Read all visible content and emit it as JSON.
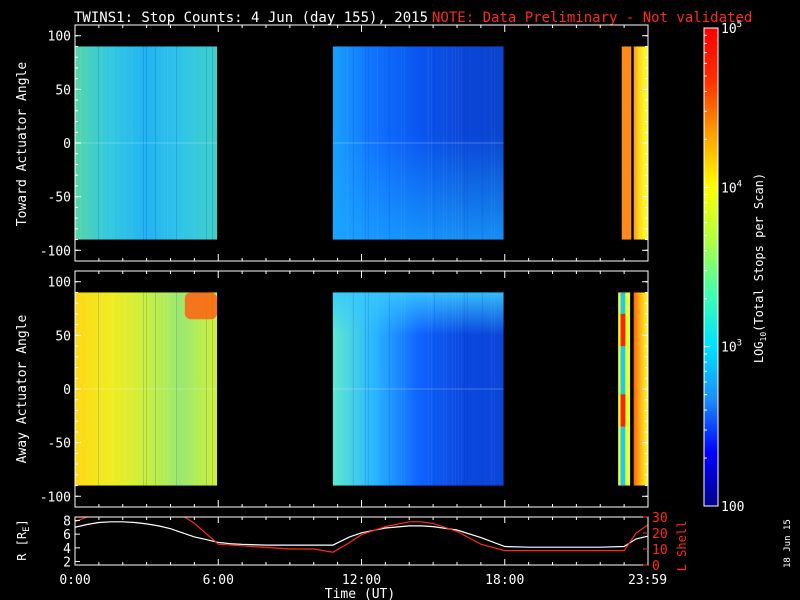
{
  "title": {
    "main": "TWINS1: Stop Counts:  4 Jun (day 155), 2015",
    "note": "NOTE: Data Preliminary - Not validated"
  },
  "date_stamp": "18 Jun 15",
  "colors": {
    "background": "#000000",
    "axis": "#ffffff",
    "note": "#ff2a1a",
    "r_line": "#ffffff",
    "lshell_line": "#ff2a1a"
  },
  "chart_data": [
    {
      "type": "heatmap",
      "panel": "top",
      "ylabel": "Toward Actuator Angle",
      "ylim": [
        -110,
        110
      ],
      "yticks": [
        100,
        50,
        0,
        -50,
        -100
      ],
      "xlim": [
        0,
        24
      ],
      "data_angle_range": [
        -90,
        90
      ],
      "time_blocks": [
        {
          "start": 0.0,
          "end": 5.95,
          "color_stops": [
            "#56d6a8",
            "#32c8e0",
            "#22b4f0",
            "#30c4e8",
            "#40d0c8"
          ],
          "mode": "horizontal",
          "striped": true
        },
        {
          "start": 10.8,
          "end": 17.95,
          "color_stops": [
            "#1aa0ff",
            "#1070ff",
            "#0a56f0",
            "#0a46d8",
            "#0a44d0"
          ],
          "mode": "horizontal",
          "striped": true,
          "lower_fade_color": "#1aa6ff"
        },
        {
          "start": 22.9,
          "end": 23.3,
          "color_stops": [
            "#ff8a1a",
            "#ff8a1a"
          ],
          "mode": "solid"
        },
        {
          "start": 23.4,
          "end": 23.99,
          "color_stops": [
            "#ff9a10",
            "#ffd020",
            "#fff020",
            "#e8ff30"
          ],
          "mode": "horizontal"
        }
      ]
    },
    {
      "type": "heatmap",
      "panel": "middle",
      "ylabel": "Away Actuator Angle",
      "ylim": [
        -110,
        110
      ],
      "yticks": [
        100,
        50,
        0,
        -50,
        -100
      ],
      "xlim": [
        0,
        24
      ],
      "data_angle_range": [
        -90,
        90
      ],
      "time_blocks": [
        {
          "start": 0.0,
          "end": 5.95,
          "color_stops": [
            "#ffd818",
            "#f0ec20",
            "#c8f040",
            "#9ae870",
            "#d0f038"
          ],
          "mode": "horizontal",
          "striped": true,
          "hot_spot": {
            "t0": 4.6,
            "t1": 5.95,
            "a0": 65,
            "a1": 90,
            "color": "#ff6010"
          }
        },
        {
          "start": 10.8,
          "end": 17.95,
          "color_stops": [
            "#60e8d0",
            "#28b4ff",
            "#1064ff",
            "#0a48e0",
            "#0a46d8"
          ],
          "mode": "horizontal",
          "striped": true,
          "upper_band_color": "#38c8ff"
        },
        {
          "start": 22.75,
          "end": 23.25,
          "color_stops": [
            "#e8ff30",
            "#e8ff30"
          ],
          "mode": "solid",
          "inner_strip": {
            "t0": 22.85,
            "t1": 23.05,
            "color": "#20c8f0",
            "red_color": "#ff2010"
          }
        },
        {
          "start": 23.4,
          "end": 23.99,
          "color_stops": [
            "#ff6010",
            "#ffa010",
            "#ffd020",
            "#f0ff30"
          ],
          "mode": "horizontal"
        }
      ]
    },
    {
      "type": "line",
      "panel": "bottom",
      "xlabel": "Time (UT)",
      "xlim": [
        0,
        24
      ],
      "xticks": [
        {
          "value": 0,
          "label": "0:00"
        },
        {
          "value": 6,
          "label": "6:00"
        },
        {
          "value": 12,
          "label": "12:00"
        },
        {
          "value": 18,
          "label": "18:00"
        },
        {
          "value": 23.98,
          "label": "23:59"
        }
      ],
      "ylabel_left": "R [R",
      "ylabel_left_sub": "E",
      "ylabel_left_end": "]",
      "ylim_left": [
        1.5,
        8.5
      ],
      "yticks_left": [
        2,
        4,
        6,
        8
      ],
      "ylabel_right": "L Shell",
      "ylim_right": [
        0,
        30
      ],
      "yticks_right": [
        0,
        10,
        20,
        30
      ],
      "series": [
        {
          "axis": "left",
          "x": [
            0,
            0.5,
            1,
            1.5,
            2,
            2.5,
            3,
            3.5,
            4,
            4.5,
            5,
            5.5,
            6,
            6.5,
            7,
            8,
            9,
            10,
            10.8,
            11.5,
            12,
            13,
            14,
            14.5,
            15,
            16,
            17,
            18,
            19,
            20,
            21,
            22,
            23,
            23.5,
            23.99
          ],
          "values": [
            7.0,
            7.4,
            7.7,
            7.8,
            7.8,
            7.7,
            7.5,
            7.2,
            6.8,
            6.2,
            5.6,
            5.2,
            4.8,
            4.6,
            4.5,
            4.4,
            4.4,
            4.4,
            4.4,
            5.6,
            6.2,
            6.9,
            7.2,
            7.2,
            7.1,
            6.6,
            5.5,
            4.2,
            4.1,
            4.1,
            4.1,
            4.1,
            4.2,
            5.3,
            5.7
          ]
        },
        {
          "axis": "right",
          "x": [
            0,
            0.5,
            1,
            1.4,
            4.5,
            5.0,
            6,
            7,
            8,
            9,
            10,
            10.8,
            11.5,
            12,
            13,
            14,
            14.5,
            15,
            16,
            17,
            18,
            19,
            20,
            21,
            22,
            23,
            23.5,
            23.99
          ],
          "values": [
            27,
            30,
            31,
            31,
            31,
            26,
            13,
            12,
            11,
            10,
            10,
            8,
            14,
            19,
            24,
            27,
            27,
            26,
            21,
            13,
            9,
            9,
            9,
            9,
            9,
            9,
            20,
            25
          ]
        }
      ]
    },
    {
      "type": "heatmap",
      "panel": "colorbar",
      "label": "LOG",
      "label_sub": "10",
      "label_rest": "(Total Stops per Scan)",
      "scale": "log",
      "range": [
        100,
        100000
      ],
      "ticks": [
        {
          "value": 100,
          "label": "100"
        },
        {
          "value": 1000,
          "label": "10",
          "sup": "3"
        },
        {
          "value": 10000,
          "label": "10",
          "sup": "4"
        },
        {
          "value": 100000,
          "label": "10",
          "sup": "5"
        }
      ],
      "color_stops": [
        "#00008c",
        "#0000ff",
        "#1a8cff",
        "#00e0ff",
        "#40ffb0",
        "#b0ff40",
        "#ffff00",
        "#ffa000",
        "#ff3000",
        "#ff0000"
      ]
    }
  ]
}
